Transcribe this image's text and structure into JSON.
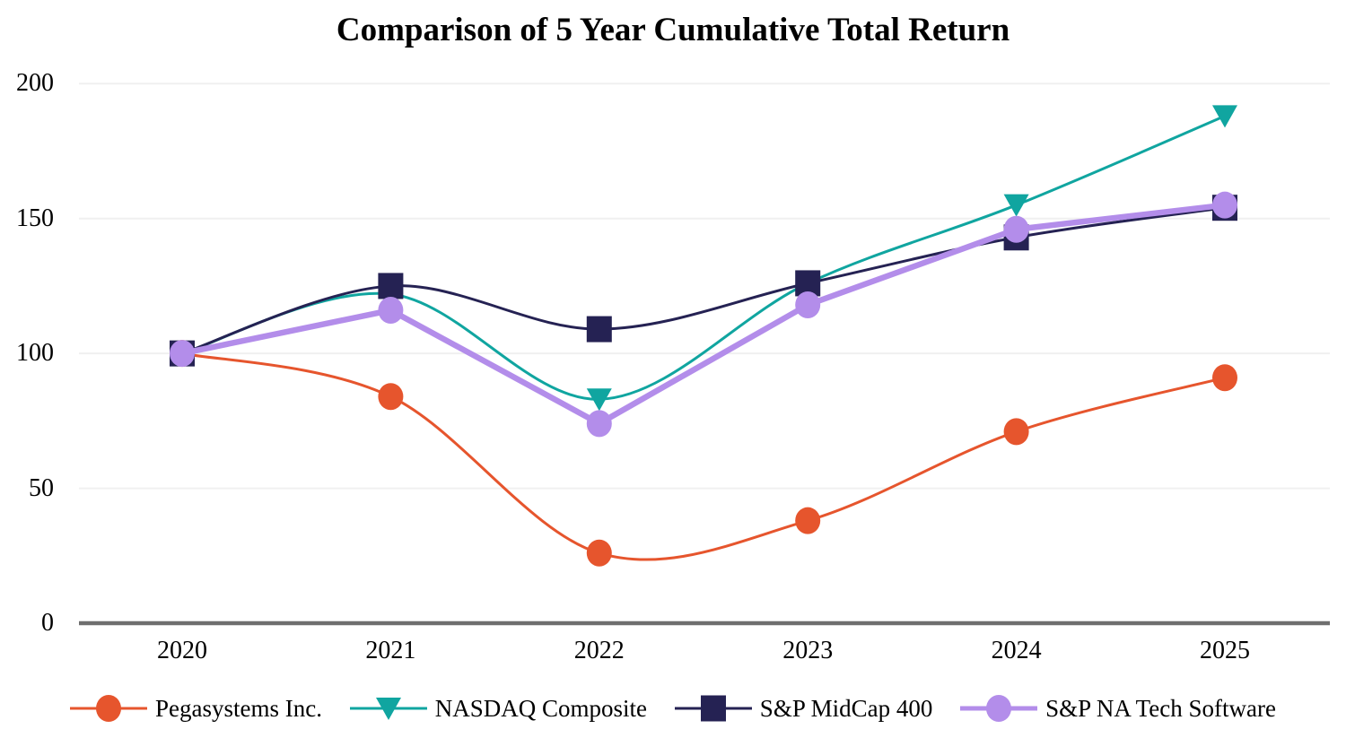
{
  "chart_data": {
    "type": "line",
    "title": "Comparison of 5 Year Cumulative Total Return",
    "x": [
      "2020",
      "2021",
      "2022",
      "2023",
      "2024",
      "2025"
    ],
    "xlabel": "",
    "ylabel": "",
    "y_ticks": [
      0,
      50,
      100,
      150,
      200
    ],
    "ylim": [
      0,
      200
    ],
    "grid": "horizontal",
    "grid_color": "#F0F0F0",
    "axis_color": "#6E6E6E",
    "legend_position": "bottom",
    "series": [
      {
        "name": "Pegasystems Inc.",
        "marker": "circle",
        "color": "#E6552D",
        "line_width": 3,
        "smooth": true,
        "values": [
          100,
          84,
          26,
          38,
          71,
          91
        ]
      },
      {
        "name": "NASDAQ Composite",
        "marker": "triangle-down",
        "color": "#10A5A0",
        "line_width": 3,
        "smooth": true,
        "values": [
          100,
          122,
          83,
          126,
          155,
          188
        ]
      },
      {
        "name": "S&P MidCap 400",
        "marker": "square",
        "color": "#252253",
        "line_width": 3,
        "smooth": true,
        "values": [
          100,
          125,
          109,
          126,
          143,
          154
        ]
      },
      {
        "name": "S&P NA Tech Software",
        "marker": "circle",
        "color": "#B38DEA",
        "line_width": 6.5,
        "smooth": false,
        "values": [
          100,
          116,
          74,
          118,
          146,
          155
        ]
      }
    ]
  }
}
